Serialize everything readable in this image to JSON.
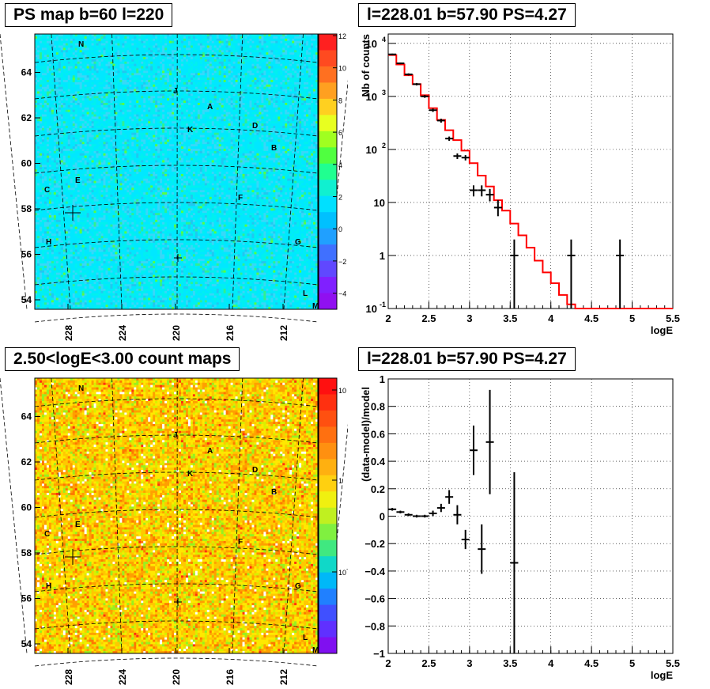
{
  "panels": {
    "map1_title": "PS map b=60 l=220",
    "map2_title": "2.50<logE<3.00 count maps",
    "spec_title": "l=228.01 b=57.90 PS=4.27",
    "resid_title": "l=228.01 b=57.90 PS=4.27"
  },
  "chart_data": [
    {
      "type": "heatmap",
      "title": "PS map b=60 l=220",
      "x_ticks": [
        "228",
        "224",
        "220",
        "216",
        "212"
      ],
      "y_ticks": [
        "54",
        "56",
        "58",
        "60",
        "62",
        "64"
      ],
      "colorbar_ticks": [
        "12",
        "10",
        "8",
        "6",
        "4",
        "2",
        "0",
        "−2",
        "−4"
      ],
      "colorbar_range": [
        -5,
        12
      ],
      "source_labels": [
        "N",
        "J",
        "A",
        "K",
        "D",
        "B",
        "E",
        "C",
        "F",
        "H",
        "G",
        "L",
        "M"
      ]
    },
    {
      "type": "line",
      "title": "l=228.01 b=57.90 PS=4.27",
      "xlabel": "logE",
      "ylabel": "Nb of counts",
      "xlim": [
        2,
        5.5
      ],
      "ylim": [
        0.1,
        15000
      ],
      "log_y": true,
      "grid": true,
      "x_ticks": [
        "2",
        "2.5",
        "3",
        "3.5",
        "4",
        "4.5",
        "5",
        "5.5"
      ],
      "y_ticks": [
        "10^-1",
        "1",
        "10",
        "10^2",
        "10^3",
        "10^4"
      ],
      "model_color": "#ff0000",
      "model": {
        "edges": [
          2.0,
          2.1,
          2.2,
          2.3,
          2.4,
          2.5,
          2.6,
          2.7,
          2.8,
          2.9,
          3.0,
          3.1,
          3.2,
          3.3,
          3.4,
          3.5,
          3.6,
          3.7,
          3.8,
          3.9,
          4.0,
          4.1,
          4.2,
          4.3,
          4.4,
          4.5,
          4.6,
          4.7,
          4.8,
          4.9,
          5.0,
          5.1,
          5.2,
          5.3,
          5.4,
          5.5
        ],
        "values": [
          6000,
          4000,
          2500,
          1700,
          1050,
          600,
          360,
          230,
          150,
          95,
          55,
          32,
          20,
          11,
          7,
          4,
          2.4,
          1.4,
          0.8,
          0.48,
          0.3,
          0.18,
          0.12,
          0.1,
          0.1,
          0.1,
          0.1,
          0.1,
          0.1,
          0.1,
          0.1,
          0.1,
          0.1,
          0.1,
          0.1
        ]
      },
      "data": [
        {
          "x": 2.05,
          "y": 6200,
          "lo": 6000,
          "hi": 6400
        },
        {
          "x": 2.15,
          "y": 4200,
          "lo": 4050,
          "hi": 4350
        },
        {
          "x": 2.25,
          "y": 2600,
          "lo": 2480,
          "hi": 2720
        },
        {
          "x": 2.35,
          "y": 1700,
          "lo": 1610,
          "hi": 1790
        },
        {
          "x": 2.45,
          "y": 1000,
          "lo": 940,
          "hi": 1060
        },
        {
          "x": 2.55,
          "y": 550,
          "lo": 510,
          "hi": 590
        },
        {
          "x": 2.65,
          "y": 350,
          "lo": 320,
          "hi": 380
        },
        {
          "x": 2.75,
          "y": 160,
          "lo": 145,
          "hi": 175
        },
        {
          "x": 2.85,
          "y": 75,
          "lo": 66,
          "hi": 84
        },
        {
          "x": 2.95,
          "y": 70,
          "lo": 62,
          "hi": 78
        },
        {
          "x": 3.05,
          "y": 17,
          "lo": 13,
          "hi": 21
        },
        {
          "x": 3.15,
          "y": 17,
          "lo": 13,
          "hi": 21
        },
        {
          "x": 3.25,
          "y": 14,
          "lo": 10.5,
          "hi": 18
        },
        {
          "x": 3.35,
          "y": 8,
          "lo": 5.5,
          "hi": 11
        },
        {
          "x": 3.55,
          "y": 1,
          "lo": 0.1,
          "hi": 2
        },
        {
          "x": 4.25,
          "y": 1,
          "lo": 0.1,
          "hi": 2
        },
        {
          "x": 4.85,
          "y": 1,
          "lo": 0.1,
          "hi": 2
        }
      ]
    },
    {
      "type": "heatmap",
      "title": "2.50<logE<3.00 count maps",
      "x_ticks": [
        "228",
        "224",
        "220",
        "216",
        "212"
      ],
      "y_ticks": [
        "54",
        "56",
        "58",
        "60",
        "62",
        "64"
      ],
      "colorbar_ticks": [
        "10",
        "1",
        "10^-1"
      ],
      "colorbar_log": true,
      "source_labels": [
        "N",
        "J",
        "A",
        "K",
        "D",
        "B",
        "E",
        "C",
        "F",
        "H",
        "G",
        "L",
        "M"
      ]
    },
    {
      "type": "scatter",
      "title": "l=228.01 b=57.90 PS=4.27",
      "xlabel": "logE",
      "ylabel": "(data-model)/model",
      "xlim": [
        2,
        5.5
      ],
      "ylim": [
        -1,
        1
      ],
      "grid": true,
      "x_ticks": [
        "2",
        "2.5",
        "3",
        "3.5",
        "4",
        "4.5",
        "5",
        "5.5"
      ],
      "y_ticks": [
        "−1",
        "−0.8",
        "−0.6",
        "−0.4",
        "−0.2",
        "0",
        "0.2",
        "0.4",
        "0.6",
        "0.8",
        "1"
      ],
      "data": [
        {
          "x": 2.05,
          "y": 0.05,
          "err": 0.01
        },
        {
          "x": 2.15,
          "y": 0.03,
          "err": 0.01
        },
        {
          "x": 2.25,
          "y": 0.01,
          "err": 0.01
        },
        {
          "x": 2.35,
          "y": 0.0,
          "err": 0.01
        },
        {
          "x": 2.45,
          "y": 0.0,
          "err": 0.01
        },
        {
          "x": 2.55,
          "y": 0.02,
          "err": 0.02
        },
        {
          "x": 2.65,
          "y": 0.06,
          "err": 0.03
        },
        {
          "x": 2.75,
          "y": 0.14,
          "err": 0.05
        },
        {
          "x": 2.85,
          "y": 0.01,
          "err": 0.07
        },
        {
          "x": 2.95,
          "y": -0.17,
          "err": 0.07
        },
        {
          "x": 3.05,
          "y": 0.48,
          "err": 0.18
        },
        {
          "x": 3.15,
          "y": -0.24,
          "err": 0.18
        },
        {
          "x": 3.25,
          "y": 0.54,
          "err": 0.38
        },
        {
          "x": 3.55,
          "y": -0.34,
          "err": 0.66
        }
      ]
    }
  ]
}
